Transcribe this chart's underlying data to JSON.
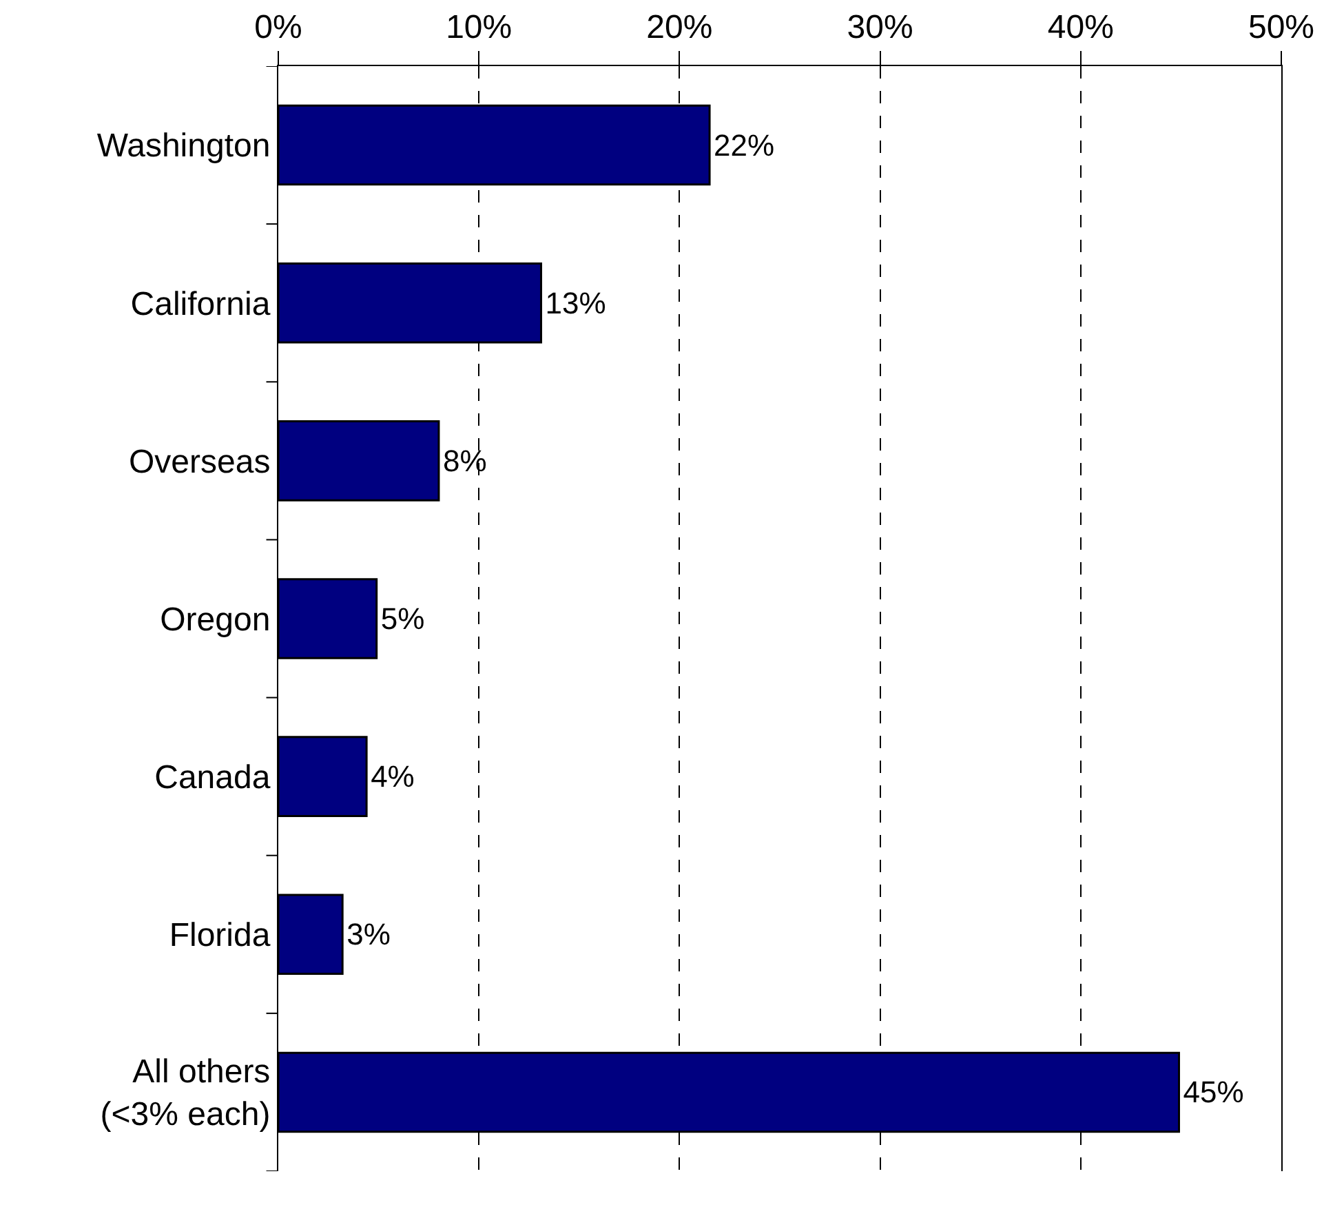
{
  "chart_data": {
    "type": "bar",
    "orientation": "horizontal",
    "categories": [
      "Washington",
      "California",
      "Overseas",
      "Oregon",
      "Canada",
      "Florida",
      "All others\n(<3% each)"
    ],
    "values": [
      21.5,
      13.1,
      8,
      4.9,
      4.4,
      3.2,
      44.9
    ],
    "value_labels": [
      "22%",
      "13%",
      "8%",
      "5%",
      "4%",
      "3%",
      "45%"
    ],
    "color": "#000080",
    "xlim": [
      0,
      50
    ],
    "xticks": [
      {
        "value": 0,
        "label": "0%"
      },
      {
        "value": 10,
        "label": "10%"
      },
      {
        "value": 20,
        "label": "20%"
      },
      {
        "value": 30,
        "label": "30%"
      },
      {
        "value": 40,
        "label": "40%"
      },
      {
        "value": 50,
        "label": "50%"
      }
    ],
    "grid": "x"
  }
}
